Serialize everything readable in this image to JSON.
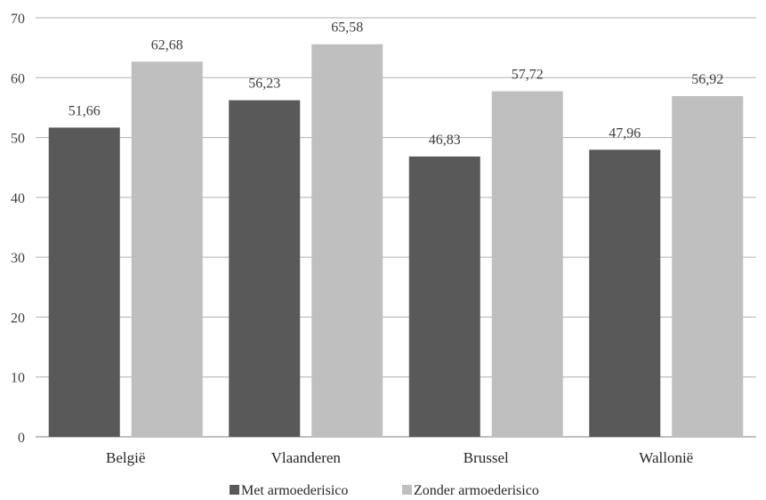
{
  "chart_data": {
    "type": "bar",
    "categories": [
      "België",
      "Vlaanderen",
      "Brussel",
      "Wallonië"
    ],
    "series": [
      {
        "name": "Met armoederisico",
        "values": [
          51.66,
          56.23,
          46.83,
          47.96
        ],
        "labels": [
          "51,66",
          "56,23",
          "46,83",
          "47,96"
        ],
        "color": "#595959"
      },
      {
        "name": "Zonder armoederisico",
        "values": [
          62.68,
          65.58,
          57.72,
          56.92
        ],
        "labels": [
          "62,68",
          "65,58",
          "57,72",
          "56,92"
        ],
        "color": "#bfbfbf"
      }
    ],
    "ylim": [
      0,
      70
    ],
    "yticks": [
      "0",
      "10",
      "20",
      "30",
      "40",
      "50",
      "60",
      "70"
    ],
    "grid": true,
    "legend_position": "bottom"
  }
}
